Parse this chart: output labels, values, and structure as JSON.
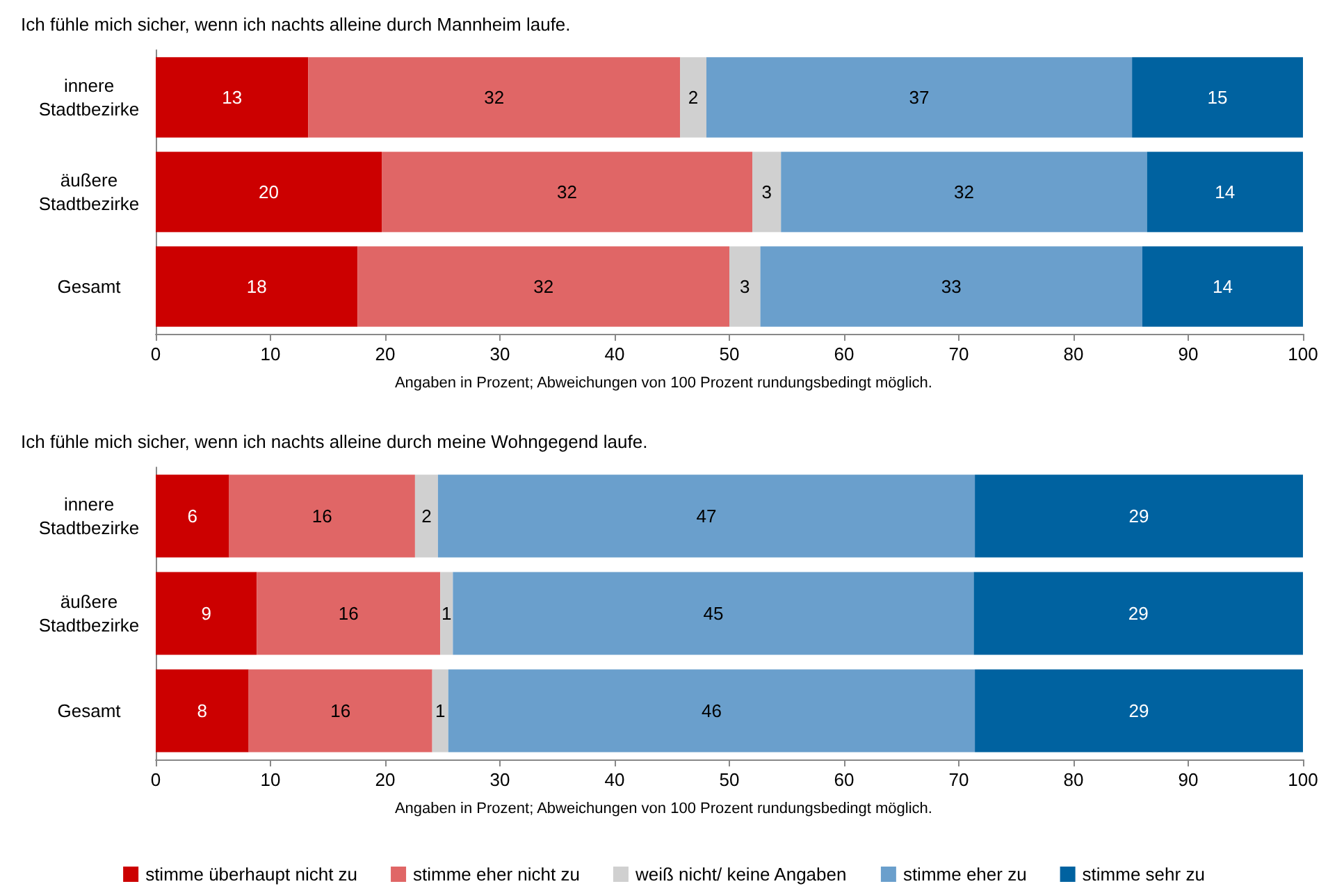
{
  "chart_data": [
    {
      "type": "bar",
      "orientation": "horizontal",
      "stacked": true,
      "title": "Ich fühle mich sicher, wenn ich nachts alleine durch Mannheim laufe.",
      "categories": [
        "innere\nStadtbezirke",
        "äußere\nStadtbezirke",
        "Gesamt"
      ],
      "xlim": [
        0,
        100
      ],
      "xticks": [
        0,
        10,
        20,
        30,
        40,
        50,
        60,
        70,
        80,
        90,
        100
      ],
      "grid": false,
      "legend": false,
      "annotations": [
        "Angaben in Prozent; Abweichungen von 100 Prozent rundungsbedingt möglich."
      ],
      "series": [
        {
          "color": "#cc0000",
          "values": [
            13.3,
            19.7,
            17.6
          ],
          "value_labels": [
            "13",
            "20",
            "18"
          ]
        },
        {
          "color": "#e06666",
          "values": [
            32.4,
            32.3,
            32.4
          ],
          "value_labels": [
            "32",
            "32",
            "32"
          ]
        },
        {
          "color": "#d0d0d0",
          "values": [
            2.3,
            2.5,
            2.7
          ],
          "value_labels": [
            "2",
            "3",
            "3"
          ]
        },
        {
          "color": "#6a9fcc",
          "values": [
            37.1,
            31.9,
            33.3
          ],
          "value_labels": [
            "37",
            "32",
            "33"
          ]
        },
        {
          "color": "#0062a0",
          "values": [
            14.9,
            13.6,
            14.0
          ],
          "value_labels": [
            "15",
            "14",
            "14"
          ]
        }
      ]
    },
    {
      "type": "bar",
      "orientation": "horizontal",
      "stacked": true,
      "title": "Ich fühle mich sicher, wenn ich nachts alleine durch meine Wohngegend laufe.",
      "categories": [
        "innere\nStadtbezirke",
        "äußere\nStadtbezirke",
        "Gesamt"
      ],
      "xlim": [
        0,
        100
      ],
      "xticks": [
        0,
        10,
        20,
        30,
        40,
        50,
        60,
        70,
        80,
        90,
        100
      ],
      "grid": false,
      "legend": "bottom",
      "annotations": [
        "Angaben in Prozent; Abweichungen von 100 Prozent rundungsbedingt möglich."
      ],
      "series": [
        {
          "name": "stimme überhaupt nicht zu",
          "color": "#cc0000",
          "values": [
            6.4,
            8.8,
            8.1
          ],
          "value_labels": [
            "6",
            "9",
            "8"
          ]
        },
        {
          "name": "stimme eher nicht zu",
          "color": "#e06666",
          "values": [
            16.2,
            16.0,
            16.0
          ],
          "value_labels": [
            "16",
            "16",
            "16"
          ]
        },
        {
          "name": "weiß nicht/ keine Angaben",
          "color": "#d0d0d0",
          "values": [
            2.0,
            1.1,
            1.4
          ],
          "value_labels": [
            "2",
            "1",
            "1"
          ]
        },
        {
          "name": "stimme eher zu",
          "color": "#6a9fcc",
          "values": [
            46.8,
            45.4,
            45.9
          ],
          "value_labels": [
            "47",
            "45",
            "46"
          ]
        },
        {
          "name": "stimme sehr zu",
          "color": "#0062a0",
          "values": [
            28.6,
            28.7,
            28.6
          ],
          "value_labels": [
            "29",
            "29",
            "29"
          ]
        }
      ]
    }
  ]
}
